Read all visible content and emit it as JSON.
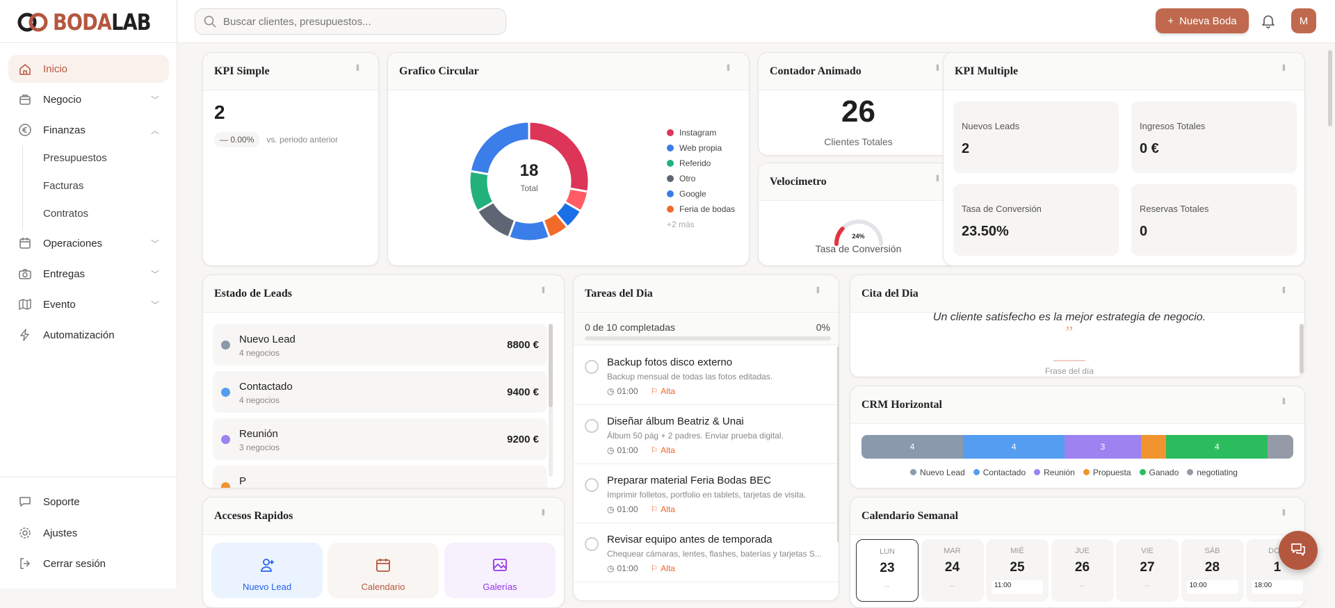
{
  "brand": {
    "part1": "BODA",
    "part2": "LAB",
    "accent": "#b4573f"
  },
  "search": {
    "placeholder": "Buscar clientes, presupuestos..."
  },
  "topbar": {
    "new_label": "Nueva Boda",
    "avatar": "M"
  },
  "sidebar": {
    "items": [
      {
        "label": "Inicio",
        "icon": "home-icon",
        "active": true
      },
      {
        "label": "Negocio",
        "icon": "briefcase-icon",
        "chevron": "down"
      },
      {
        "label": "Finanzas",
        "icon": "euro-icon",
        "chevron": "up"
      },
      {
        "label": "Operaciones",
        "icon": "calendar-icon",
        "chevron": "down"
      },
      {
        "label": "Entregas",
        "icon": "camera-icon",
        "chevron": "down"
      },
      {
        "label": "Evento",
        "icon": "map-icon",
        "chevron": "down"
      },
      {
        "label": "Automatización",
        "icon": "bolt-icon"
      }
    ],
    "subitems": [
      "Presupuestos",
      "Facturas",
      "Contratos"
    ],
    "bottom": [
      {
        "label": "Soporte",
        "icon": "chat-icon"
      },
      {
        "label": "Ajustes",
        "icon": "gear-icon"
      },
      {
        "label": "Cerrar sesión",
        "icon": "logout-icon"
      }
    ]
  },
  "kpi_simple": {
    "title": "KPI Simple",
    "value": "2",
    "change": "0.00%",
    "compare": "vs. periodo anterior"
  },
  "donut": {
    "title": "Grafico Circular",
    "total": "18",
    "total_label": "Total",
    "more": "+2 más",
    "legend": [
      {
        "name": "Instagram",
        "color": "#dc3558"
      },
      {
        "name": "Web propia",
        "color": "#3b7de9"
      },
      {
        "name": "Referido",
        "color": "#22b07d"
      },
      {
        "name": "Otro",
        "color": "#5f6673"
      },
      {
        "name": "Google",
        "color": "#3b7de9"
      },
      {
        "name": "Feria de bodas",
        "color": "#f26a2a"
      }
    ],
    "slices": [
      {
        "name": "Instagram",
        "value": 5,
        "color": "#dc3558"
      },
      {
        "value": 1,
        "color": "#ff5c66"
      },
      {
        "value": 1,
        "color": "#1a6fe6"
      },
      {
        "name": "Feria de bodas",
        "value": 1,
        "color": "#f26a2a"
      },
      {
        "name": "Google",
        "value": 2,
        "color": "#3b7de9"
      },
      {
        "name": "Otro",
        "value": 2,
        "color": "#5f6673"
      },
      {
        "name": "Referido",
        "value": 2,
        "color": "#22b07d"
      },
      {
        "name": "Web propia",
        "value": 4,
        "color": "#3b7de9"
      }
    ]
  },
  "counter": {
    "title": "Contador Animado",
    "value": "26",
    "label": "Clientes Totales"
  },
  "gauge": {
    "title": "Velocimetro",
    "percent": 24,
    "value_label": "24%",
    "label": "Tasa de Conversión"
  },
  "kpi_multi": {
    "title": "KPI Multiple",
    "tiles": [
      {
        "label": "Nuevos Leads",
        "value": "2"
      },
      {
        "label": "Ingresos Totales",
        "value": "0 €"
      },
      {
        "label": "Tasa de Conversión",
        "value": "23.50%"
      },
      {
        "label": "Reservas Totales",
        "value": "0"
      }
    ]
  },
  "leads": {
    "title": "Estado de Leads",
    "rows": [
      {
        "name": "Nuevo Lead",
        "count": "4 negocios",
        "amount": "8800 €",
        "color": "#8b99ad"
      },
      {
        "name": "Contactado",
        "count": "4 negocios",
        "amount": "9400 €",
        "color": "#559df0"
      },
      {
        "name": "Reunión",
        "count": "3 negocios",
        "amount": "9200 €",
        "color": "#9d82f0"
      },
      {
        "name": "P",
        "count": "",
        "amount": "",
        "color": "#f19430"
      }
    ]
  },
  "tasks": {
    "title": "Tareas del Dia",
    "summary": "0 de 10 completadas",
    "percent_label": "0%",
    "progress": 0,
    "items": [
      {
        "title": "Backup fotos disco externo",
        "desc": "Backup mensual de todas las fotos editadas.",
        "time": "01:00",
        "priority": "Alta"
      },
      {
        "title": "Diseñar álbum Beatriz & Unai",
        "desc": "Álbum 50 pág + 2 padres. Enviar prueba digital.",
        "time": "01:00",
        "priority": "Alta"
      },
      {
        "title": "Preparar material Feria Bodas BEC",
        "desc": "Imprimir folletos, portfolio en tablets, tarjetas de visita.",
        "time": "01:00",
        "priority": "Alta"
      },
      {
        "title": "Revisar equipo antes de temporada",
        "desc": "Chequear cámaras, lentes, flashes, baterías y tarjetas S...",
        "time": "01:00",
        "priority": "Alta"
      }
    ]
  },
  "quote": {
    "title": "Cita del Dia",
    "text": "Un cliente satisfecho es la mejor estrategia de negocio.",
    "mark": "”",
    "caption": "Frase del día"
  },
  "crm": {
    "title": "CRM Horizontal",
    "segments": [
      {
        "name": "Nuevo Lead",
        "value": 4,
        "color": "#8b99ad",
        "label": "4"
      },
      {
        "name": "Contactado",
        "value": 4,
        "color": "#559df0",
        "label": "4"
      },
      {
        "name": "Reunión",
        "value": 3,
        "color": "#9d82f0",
        "label": "3"
      },
      {
        "name": "Propuesta",
        "value": 1,
        "color": "#f19430",
        "label": ""
      },
      {
        "name": "Ganado",
        "value": 4,
        "color": "#2bbd5d",
        "label": "4"
      },
      {
        "name": "negotiating",
        "value": 1,
        "color": "#959ba6",
        "label": ""
      }
    ]
  },
  "quick": {
    "title": "Accesos Rapidos",
    "items": [
      {
        "label": "Nuevo Lead",
        "icon": "user-plus-icon",
        "color": "#2563eb",
        "bg": "#ebf3fe"
      },
      {
        "label": "Calendario",
        "icon": "calendar-icon",
        "color": "#b4573f",
        "bg": "#f9f5f2"
      },
      {
        "label": "Galerías",
        "icon": "image-icon",
        "color": "#9333ea",
        "bg": "#f6f1fd"
      }
    ]
  },
  "calendar": {
    "title": "Calendario Semanal",
    "days": [
      {
        "name": "LUN",
        "date": "23",
        "selected": true,
        "event": "--"
      },
      {
        "name": "MAR",
        "date": "24",
        "event": "--"
      },
      {
        "name": "MIÉ",
        "date": "25",
        "time": "11:00"
      },
      {
        "name": "JUE",
        "date": "26",
        "event": "--"
      },
      {
        "name": "VIE",
        "date": "27",
        "event": "--"
      },
      {
        "name": "SÁB",
        "date": "28",
        "time": "10:00"
      },
      {
        "name": "DOM",
        "date": "1",
        "time": "18:00"
      }
    ]
  }
}
